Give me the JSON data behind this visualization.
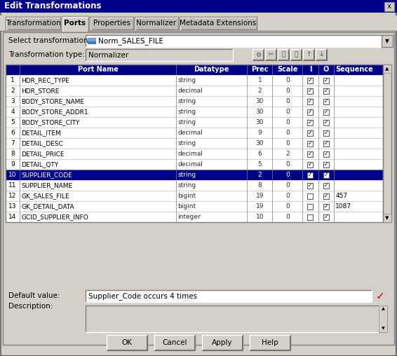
{
  "title": "Edit Transformations",
  "tabs": [
    "Transformation",
    "Ports",
    "Properties",
    "Normalizer",
    "Metadata Extensions"
  ],
  "active_tab": "Ports",
  "select_transformation_label": "Select transformation:",
  "select_transformation_value": "Norm_SALES_FILE",
  "transformation_type_label": "Transformation type:",
  "transformation_type_value": "Normalizer",
  "table_headers": [
    "",
    "Port Name",
    "Datatype",
    "Prec",
    "Scale",
    "I",
    "O",
    "Sequence"
  ],
  "rows": [
    [
      "1",
      "HDR_REC_TYPE",
      "string",
      "1",
      "0",
      true,
      true,
      ""
    ],
    [
      "2",
      "HDR_STORE",
      "decimal",
      "2",
      "0",
      true,
      true,
      ""
    ],
    [
      "3",
      "BODY_STORE_NAME",
      "string",
      "30",
      "0",
      true,
      true,
      ""
    ],
    [
      "4",
      "BODY_STORE_ADDR1",
      "string",
      "30",
      "0",
      true,
      true,
      ""
    ],
    [
      "5",
      "BODY_STORE_CITY",
      "string",
      "30",
      "0",
      true,
      true,
      ""
    ],
    [
      "6",
      "DETAIL_ITEM",
      "decimal",
      "9",
      "0",
      true,
      true,
      ""
    ],
    [
      "7",
      "DETAIL_DESC",
      "string",
      "30",
      "0",
      true,
      true,
      ""
    ],
    [
      "8",
      "DETAIL_PRICE",
      "decimal",
      "6",
      "2",
      true,
      true,
      ""
    ],
    [
      "9",
      "DETAIL_QTY",
      "decimal",
      "5",
      "0",
      true,
      true,
      ""
    ],
    [
      "10",
      "SUPPLIER_CODE",
      "string",
      "2",
      "0",
      true,
      true,
      ""
    ],
    [
      "11",
      "SUPPLIER_NAME",
      "string",
      "8",
      "0",
      true,
      true,
      ""
    ],
    [
      "12",
      "GK_SALES_FILE",
      "bigint",
      "19",
      "0",
      false,
      true,
      "457"
    ],
    [
      "13",
      "GK_DETAIL_DATA",
      "bigint",
      "19",
      "0",
      false,
      true,
      "1087"
    ],
    [
      "14",
      "GCID_SUPPLIER_INFO",
      "integer",
      "10",
      "0",
      false,
      true,
      ""
    ]
  ],
  "selected_row": 9,
  "default_value_label": "Default value:",
  "default_value_text": "Supplier_Code occurs 4 times",
  "description_label": "Description:",
  "buttons": [
    "OK",
    "Cancel",
    "Apply",
    "Help"
  ],
  "bg_color": "#d4d0c8",
  "title_bar_color": "#00008b",
  "title_bar_text_color": "#ffffff",
  "header_bg_color": "#00008b",
  "header_text_color": "#ffffff",
  "selected_row_color": "#00008b",
  "selected_row_text_color": "#ffffff",
  "row_bg": "#ffffff",
  "grid_color": "#c8c8c8",
  "tab_active_color": "#d4d0c8",
  "tab_inactive_color": "#c0bdb5"
}
